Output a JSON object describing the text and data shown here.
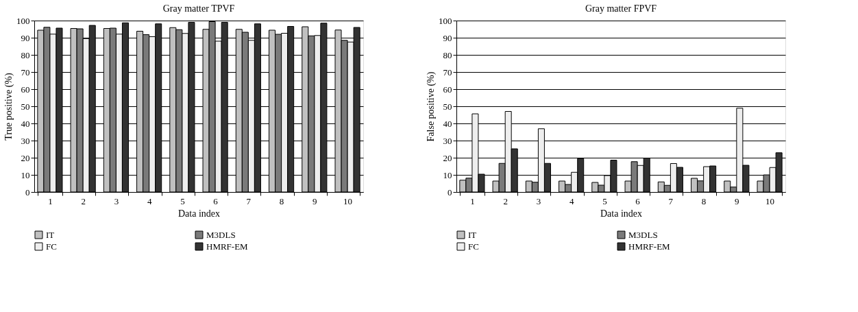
{
  "chart_data": [
    {
      "type": "bar",
      "title": "Gray matter TPVF",
      "xlabel": "Data index",
      "ylabel": "True positive (%)",
      "categories": [
        "1",
        "2",
        "3",
        "4",
        "5",
        "6",
        "7",
        "8",
        "9",
        "10"
      ],
      "ylim": [
        0,
        100
      ],
      "yticks": [
        0,
        10,
        20,
        30,
        40,
        50,
        60,
        70,
        80,
        90,
        100
      ],
      "grid": "y",
      "legend": "bottom",
      "series": [
        {
          "name": "IT",
          "color": "#c0c0c0",
          "values": [
            94.4,
            95.4,
            95.4,
            93.8,
            95.9,
            94.9,
            94.9,
            94.4,
            96.4,
            94.5
          ]
        },
        {
          "name": "M3DLS",
          "color": "#7a7a7a",
          "values": [
            96.1,
            95.2,
            95.6,
            91.8,
            94.7,
            99.4,
            93.2,
            92.0,
            91.1,
            88.5
          ]
        },
        {
          "name": "FC",
          "color": "#eeeeee",
          "values": [
            92.1,
            89.5,
            92.1,
            90.6,
            92.5,
            88.0,
            88.5,
            92.6,
            91.3,
            87.5
          ]
        },
        {
          "name": "HMRF-EM",
          "color": "#333333",
          "values": [
            95.6,
            97.2,
            98.7,
            98.1,
            99.0,
            99.0,
            98.1,
            96.6,
            98.5,
            96.0
          ]
        }
      ]
    },
    {
      "type": "bar",
      "title": "Gray matter FPVF",
      "xlabel": "Data index",
      "ylabel": "False positive (%)",
      "categories": [
        "1",
        "2",
        "3",
        "4",
        "5",
        "6",
        "7",
        "8",
        "9",
        "10"
      ],
      "ylim": [
        0,
        100
      ],
      "yticks": [
        0,
        10,
        20,
        30,
        40,
        50,
        60,
        70,
        80,
        90,
        100
      ],
      "grid": "y",
      "legend": "bottom",
      "series": [
        {
          "name": "IT",
          "color": "#c0c0c0",
          "values": [
            6.9,
            6.4,
            6.4,
            6.4,
            5.6,
            6.4,
            5.9,
            8.0,
            6.4,
            6.4
          ]
        },
        {
          "name": "M3DLS",
          "color": "#7a7a7a",
          "values": [
            8.1,
            16.7,
            5.7,
            4.4,
            4.0,
            17.7,
            3.9,
            6.5,
            2.9,
            10.0
          ]
        },
        {
          "name": "FC",
          "color": "#eeeeee",
          "values": [
            45.6,
            47.0,
            36.9,
            11.5,
            9.6,
            15.5,
            16.6,
            14.8,
            48.9,
            14.3
          ]
        },
        {
          "name": "HMRF-EM",
          "color": "#333333",
          "values": [
            10.4,
            25.2,
            16.7,
            19.5,
            18.6,
            19.8,
            14.4,
            15.2,
            15.6,
            22.9
          ]
        }
      ]
    }
  ]
}
